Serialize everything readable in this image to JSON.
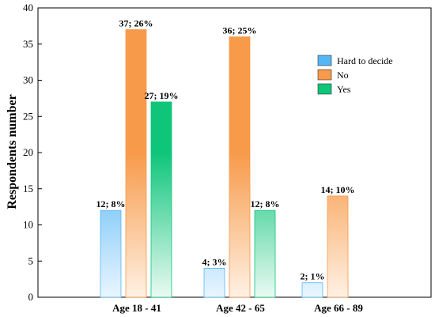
{
  "chart_data": {
    "type": "bar",
    "categories": [
      "Age 18 - 41",
      "Age 42 - 65",
      "Age 66 - 89"
    ],
    "series": [
      {
        "name": "Hard to decide",
        "values": [
          12,
          4,
          2
        ],
        "labels": [
          "12; 8%",
          "4; 3%",
          "2; 1%"
        ],
        "color": "#7ec8f8"
      },
      {
        "name": "No",
        "values": [
          37,
          36,
          14
        ],
        "labels": [
          "37; 26%",
          "36; 25%",
          "14; 10%"
        ],
        "color": "#f7a35c"
      },
      {
        "name": "Yes",
        "values": [
          27,
          12,
          null
        ],
        "labels": [
          "27; 19%",
          "12; 8%",
          ""
        ],
        "color": "#1bc47d"
      }
    ],
    "ylabel": "Respondents number",
    "xlabel": "",
    "ylim": [
      0,
      40
    ],
    "yticks": [
      0,
      5,
      10,
      15,
      20,
      25,
      30,
      35,
      40
    ],
    "grid": false,
    "legend_position": "top-right"
  }
}
